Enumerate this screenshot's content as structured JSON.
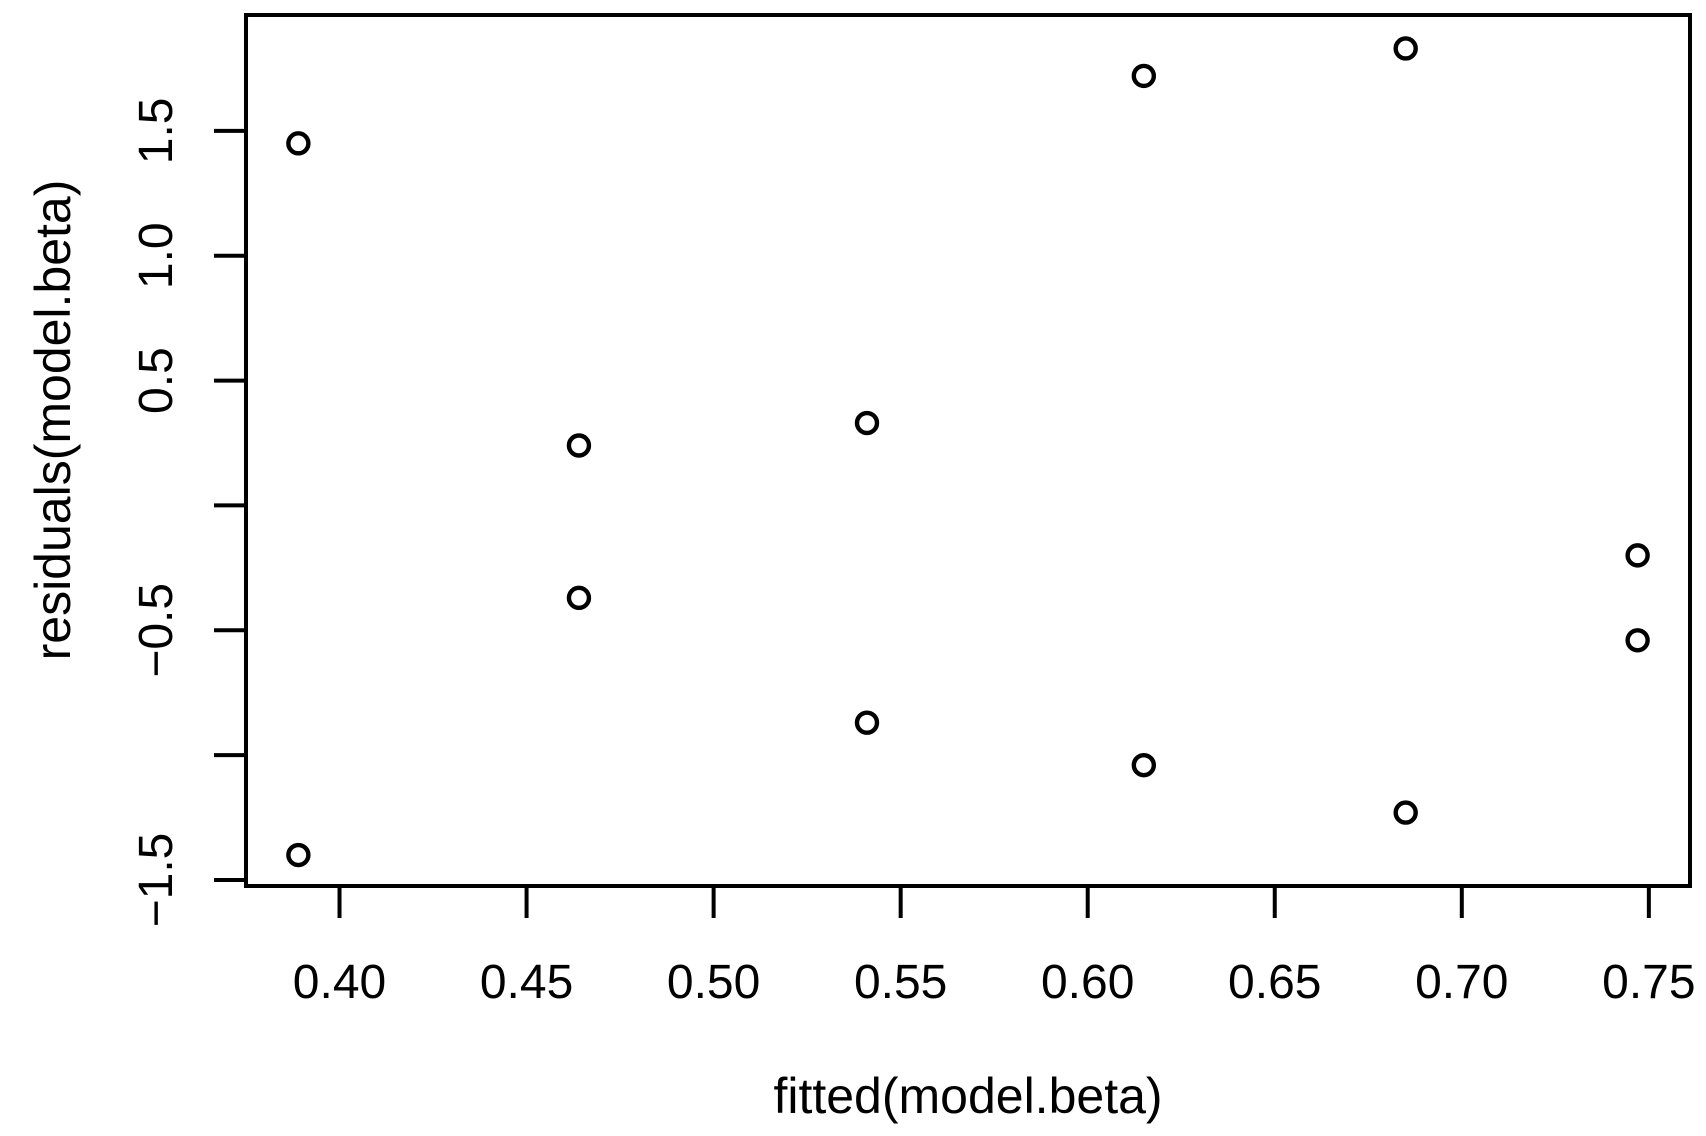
{
  "chart_data": {
    "type": "scatter",
    "title": "",
    "xlabel": "fitted(model.beta)",
    "ylabel": "residuals(model.beta)",
    "marker": "open-circle",
    "grid": false,
    "legend": null,
    "xlim": [
      0.375,
      0.761
    ],
    "ylim": [
      -1.524,
      1.964
    ],
    "x_ticks": [
      0.4,
      0.45,
      0.5,
      0.55,
      0.6,
      0.65,
      0.7,
      0.75
    ],
    "x_tick_labels": [
      "0.40",
      "0.45",
      "0.50",
      "0.55",
      "0.60",
      "0.65",
      "0.70",
      "0.75"
    ],
    "y_ticks": [
      1.5,
      1.0,
      0.5,
      0.0,
      -0.5,
      -1.0,
      -1.5
    ],
    "y_tick_labels": [
      "1.5",
      "1.0",
      "0.5",
      "",
      "−0.5",
      "",
      "−1.5"
    ],
    "points": [
      {
        "x": 0.389,
        "y": 1.45
      },
      {
        "x": 0.389,
        "y": -1.4
      },
      {
        "x": 0.464,
        "y": 0.24
      },
      {
        "x": 0.464,
        "y": -0.37
      },
      {
        "x": 0.541,
        "y": 0.33
      },
      {
        "x": 0.541,
        "y": -0.87
      },
      {
        "x": 0.615,
        "y": 1.72
      },
      {
        "x": 0.615,
        "y": -1.04
      },
      {
        "x": 0.685,
        "y": 1.83
      },
      {
        "x": 0.685,
        "y": -1.23
      },
      {
        "x": 0.747,
        "y": -0.2
      },
      {
        "x": 0.747,
        "y": -0.54
      }
    ],
    "colors": {
      "foreground": "#000000",
      "background": "#ffffff"
    }
  }
}
